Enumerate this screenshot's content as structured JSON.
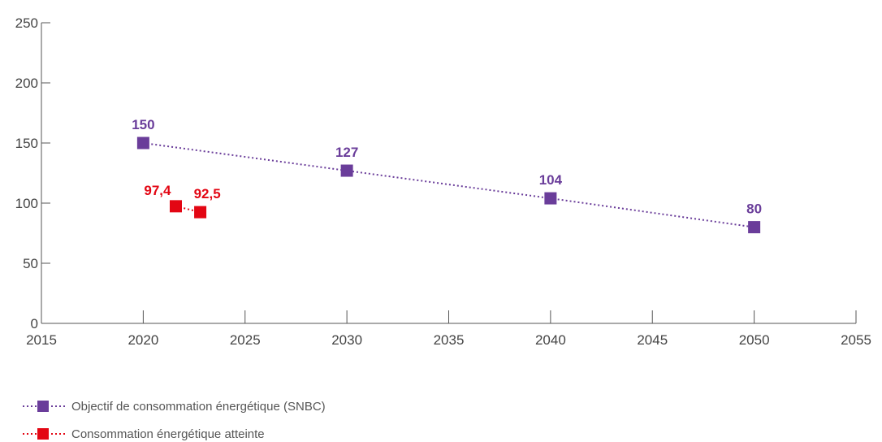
{
  "chart_data": {
    "type": "line",
    "x_axis": {
      "min": 2015,
      "max": 2055,
      "ticks": [
        "2015",
        "2020",
        "2025",
        "2030",
        "2035",
        "2040",
        "2045",
        "2050",
        "2055"
      ]
    },
    "y_axis": {
      "min": 0,
      "max": 250,
      "ticks": [
        "0",
        "50",
        "100",
        "150",
        "200",
        "250"
      ]
    },
    "grid": false,
    "legend_position": "bottom-left",
    "series": [
      {
        "name": "Objectif de consommation énergétique (SNBC)",
        "color": "#6a3d9a",
        "line_style": "dotted",
        "marker": "square",
        "points": [
          {
            "x": 2020,
            "y": 150,
            "label": "150"
          },
          {
            "x": 2030,
            "y": 127,
            "label": "127"
          },
          {
            "x": 2040,
            "y": 104,
            "label": "104"
          },
          {
            "x": 2050,
            "y": 80,
            "label": "80"
          }
        ]
      },
      {
        "name": "Consommation énergétique atteinte",
        "color": "#e30613",
        "line_style": "dotted",
        "marker": "square",
        "points": [
          {
            "x": 2021.6,
            "y": 97.4,
            "label": "97,4"
          },
          {
            "x": 2022.8,
            "y": 92.5,
            "label": "92,5"
          }
        ]
      }
    ]
  },
  "legend": [
    {
      "label": "Objectif de consommation énergétique (SNBC)",
      "color": "#6a3d9a"
    },
    {
      "label": "Consommation énergétique atteinte",
      "color": "#e30613"
    }
  ]
}
